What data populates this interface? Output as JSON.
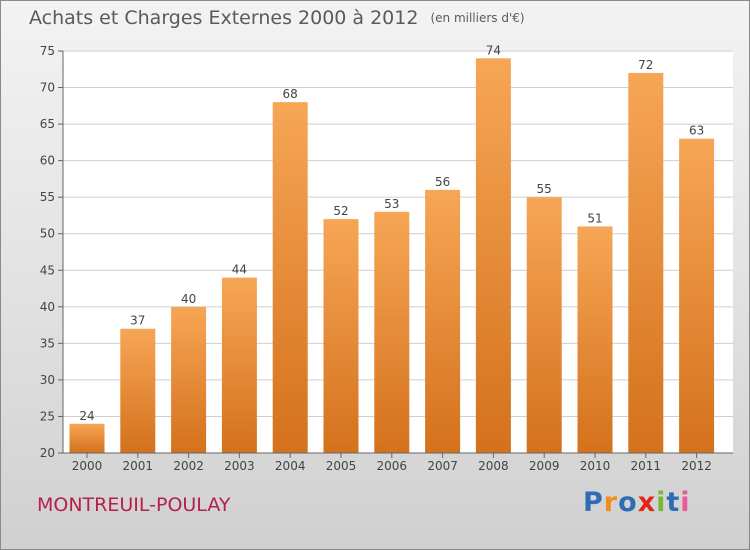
{
  "chart_data": {
    "type": "bar",
    "title": "Achats et Charges Externes 2000 à 2012",
    "unit_label": "(en milliers d'€)",
    "categories": [
      "2000",
      "2001",
      "2002",
      "2003",
      "2004",
      "2005",
      "2006",
      "2007",
      "2008",
      "2009",
      "2010",
      "2011",
      "2012"
    ],
    "values": [
      24,
      37,
      40,
      44,
      68,
      52,
      53,
      56,
      74,
      55,
      51,
      72,
      63
    ],
    "ylim": [
      20,
      75
    ],
    "yticks": [
      20,
      25,
      30,
      35,
      40,
      45,
      50,
      55,
      60,
      65,
      70,
      75
    ],
    "xlabel": "",
    "ylabel": "",
    "grid": true,
    "bar_color_top": "#f6a656",
    "bar_color_bottom": "#d4711c"
  },
  "location": "MONTREUIL-POULAY",
  "brand": {
    "letters": [
      "P",
      "r",
      "o",
      "x",
      "i",
      "t",
      "i"
    ],
    "colors": [
      "#2e6db5",
      "#f28c1a",
      "#2e6db5",
      "#e1251b",
      "#7ab637",
      "#2e6db5",
      "#e85a9a"
    ]
  }
}
